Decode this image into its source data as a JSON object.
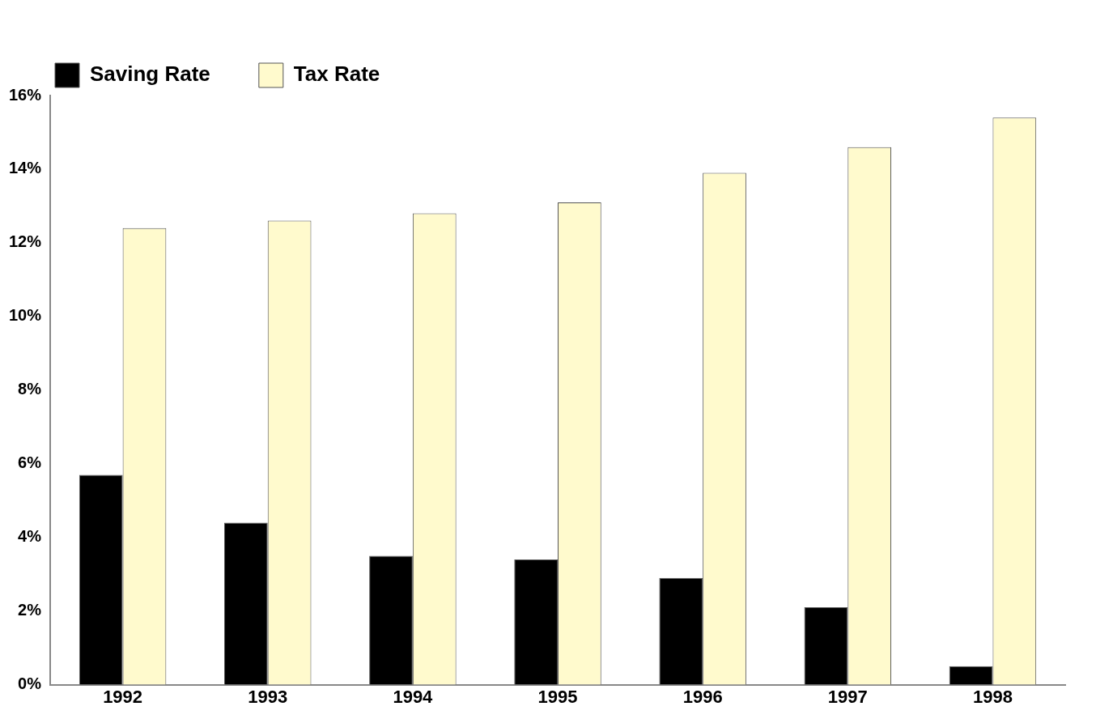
{
  "chart_data": {
    "type": "bar",
    "categories": [
      "1992",
      "1993",
      "1994",
      "1995",
      "1996",
      "1997",
      "1998"
    ],
    "series": [
      {
        "name": "Saving Rate",
        "color": "#000000",
        "values": [
          5.7,
          4.4,
          3.5,
          3.4,
          2.9,
          2.1,
          0.5
        ]
      },
      {
        "name": "Tax Rate",
        "color": "#fffacd",
        "values": [
          12.4,
          12.6,
          12.8,
          13.1,
          13.9,
          14.6,
          15.4
        ]
      }
    ],
    "ylim": [
      0,
      16
    ],
    "yticks": [
      {
        "value": 0,
        "label": "0%"
      },
      {
        "value": 2,
        "label": "2%"
      },
      {
        "value": 4,
        "label": "4%"
      },
      {
        "value": 6,
        "label": "6%"
      },
      {
        "value": 8,
        "label": "8%"
      },
      {
        "value": 10,
        "label": "10%"
      },
      {
        "value": 12,
        "label": "12%"
      },
      {
        "value": 14,
        "label": "14%"
      },
      {
        "value": 16,
        "label": "16%"
      }
    ],
    "grid": false,
    "legend": "top left"
  }
}
